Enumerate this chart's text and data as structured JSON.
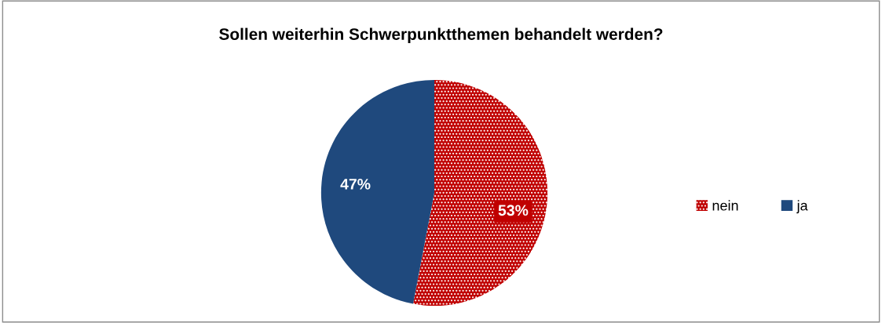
{
  "chart_data": {
    "type": "pie",
    "title": "Sollen weiterhin Schwerpunktthemen behandelt werden?",
    "categories": [
      "nein",
      "ja"
    ],
    "values": [
      53,
      47
    ],
    "colors": [
      "#c00000",
      "#1f497d"
    ],
    "value_labels": [
      "53%",
      "47%"
    ],
    "legend": "right"
  }
}
